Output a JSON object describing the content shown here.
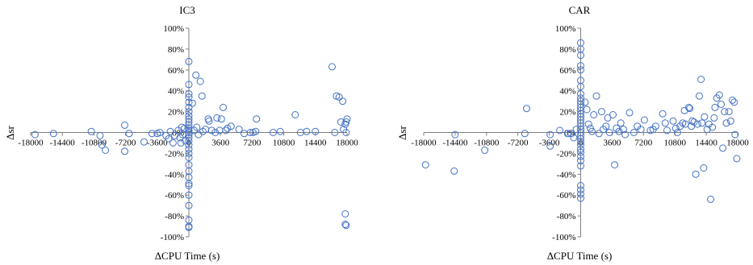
{
  "chart_data": [
    {
      "type": "scatter",
      "title": "IC3",
      "xlabel": "ΔCPU Time (s)",
      "ylabel": "Δsr",
      "xlim": [
        -18000,
        18000
      ],
      "ylim": [
        -100,
        100
      ],
      "x_ticks": [
        "-18000",
        "-14400",
        "-10800",
        "-7200",
        "-3600",
        "0",
        "3600",
        "7200",
        "10800",
        "14400",
        "18000"
      ],
      "y_ticks": [
        "-100%",
        "-80%",
        "-60%",
        "-40%",
        "-20%",
        "0%",
        "20%",
        "40%",
        "60%",
        "80%",
        "100%"
      ],
      "grid": false,
      "marker_color": "#4472c4",
      "series": [
        {
          "points": [
            [
              -17500,
              -2
            ],
            [
              -15400,
              -1
            ],
            [
              -11100,
              1
            ],
            [
              -10100,
              -3
            ],
            [
              -9900,
              -12
            ],
            [
              -9500,
              -17
            ],
            [
              -7300,
              7
            ],
            [
              -7300,
              -18
            ],
            [
              -6800,
              -1
            ],
            [
              -5100,
              -9
            ],
            [
              -4200,
              -1
            ],
            [
              -3600,
              -1
            ],
            [
              -3300,
              0
            ],
            [
              -2600,
              -3
            ],
            [
              -2300,
              -6
            ],
            [
              -2100,
              1
            ],
            [
              -1800,
              -10
            ],
            [
              -1600,
              -3
            ],
            [
              -1200,
              2
            ],
            [
              -1000,
              -5
            ],
            [
              -900,
              -10
            ],
            [
              -800,
              5
            ],
            [
              -700,
              -2
            ],
            [
              -500,
              4
            ],
            [
              -400,
              -8
            ],
            [
              0,
              68
            ],
            [
              0,
              46
            ],
            [
              0,
              37
            ],
            [
              0,
              34
            ],
            [
              0,
              29
            ],
            [
              0,
              24
            ],
            [
              0,
              20
            ],
            [
              0,
              16
            ],
            [
              0,
              13
            ],
            [
              0,
              10
            ],
            [
              0,
              7
            ],
            [
              0,
              4
            ],
            [
              0,
              2
            ],
            [
              0,
              0
            ],
            [
              0,
              -2
            ],
            [
              0,
              -5
            ],
            [
              0,
              -8
            ],
            [
              0,
              -12
            ],
            [
              0,
              -16
            ],
            [
              0,
              -20
            ],
            [
              0,
              -24
            ],
            [
              0,
              -31
            ],
            [
              0,
              -37
            ],
            [
              0,
              -43
            ],
            [
              0,
              -49
            ],
            [
              0,
              -51
            ],
            [
              0,
              -60
            ],
            [
              0,
              -70
            ],
            [
              0,
              -84
            ],
            [
              0,
              -90
            ],
            [
              0,
              -91
            ],
            [
              400,
              28
            ],
            [
              600,
              2
            ],
            [
              800,
              55
            ],
            [
              900,
              5
            ],
            [
              1100,
              -2
            ],
            [
              1300,
              49
            ],
            [
              1500,
              35
            ],
            [
              1600,
              1
            ],
            [
              1900,
              3
            ],
            [
              2200,
              13
            ],
            [
              2300,
              11
            ],
            [
              2600,
              2
            ],
            [
              3000,
              0
            ],
            [
              3200,
              14
            ],
            [
              3500,
              2
            ],
            [
              3700,
              13
            ],
            [
              3900,
              24
            ],
            [
              4200,
              2
            ],
            [
              4400,
              4
            ],
            [
              4800,
              6
            ],
            [
              5700,
              3
            ],
            [
              6300,
              -1
            ],
            [
              7000,
              0
            ],
            [
              7300,
              0
            ],
            [
              7600,
              1
            ],
            [
              7700,
              13
            ],
            [
              9600,
              0
            ],
            [
              10400,
              1
            ],
            [
              12100,
              17
            ],
            [
              12700,
              0
            ],
            [
              13400,
              1
            ],
            [
              14400,
              1
            ],
            [
              16300,
              63
            ],
            [
              16800,
              35
            ],
            [
              17100,
              34
            ],
            [
              17500,
              30
            ],
            [
              17800,
              -78
            ],
            [
              17800,
              -88
            ],
            [
              17900,
              -89
            ],
            [
              18000,
              13
            ],
            [
              17900,
              10
            ],
            [
              17800,
              8
            ],
            [
              17600,
              3
            ],
            [
              17900,
              0
            ],
            [
              17300,
              10
            ],
            [
              16600,
              0
            ]
          ]
        }
      ]
    },
    {
      "type": "scatter",
      "title": "CAR",
      "xlabel": "ΔCPU Time (s)",
      "ylabel": "Δsr",
      "xlim": [
        -18000,
        18000
      ],
      "ylim": [
        -100,
        100
      ],
      "x_ticks": [
        "-18000",
        "-14400",
        "-10800",
        "-7200",
        "-3600",
        "0",
        "3600",
        "7200",
        "10800",
        "14400",
        "18000"
      ],
      "y_ticks": [
        "-100%",
        "-80%",
        "-60%",
        "-40%",
        "-20%",
        "0%",
        "20%",
        "40%",
        "60%",
        "80%",
        "100%"
      ],
      "grid": false,
      "marker_color": "#4472c4",
      "series": [
        {
          "points": [
            [
              -17800,
              -31
            ],
            [
              -14500,
              -37
            ],
            [
              -14400,
              -2
            ],
            [
              -11000,
              -17
            ],
            [
              -6400,
              -1
            ],
            [
              -6200,
              23
            ],
            [
              -3500,
              -13
            ],
            [
              -3500,
              -2
            ],
            [
              -2400,
              2
            ],
            [
              -1500,
              -1
            ],
            [
              -1100,
              -1
            ],
            [
              -800,
              -5
            ],
            [
              -500,
              3
            ],
            [
              0,
              86
            ],
            [
              0,
              80
            ],
            [
              0,
              74
            ],
            [
              0,
              64
            ],
            [
              0,
              60
            ],
            [
              0,
              50
            ],
            [
              0,
              44
            ],
            [
              0,
              37
            ],
            [
              0,
              33
            ],
            [
              0,
              30
            ],
            [
              0,
              27
            ],
            [
              0,
              24
            ],
            [
              0,
              21
            ],
            [
              0,
              18
            ],
            [
              0,
              15
            ],
            [
              0,
              12
            ],
            [
              0,
              9
            ],
            [
              0,
              6
            ],
            [
              0,
              3
            ],
            [
              0,
              0
            ],
            [
              0,
              -3
            ],
            [
              0,
              -6
            ],
            [
              0,
              -9
            ],
            [
              0,
              -12
            ],
            [
              0,
              -16
            ],
            [
              0,
              -19
            ],
            [
              0,
              -23
            ],
            [
              0,
              -27
            ],
            [
              0,
              -32
            ],
            [
              0,
              -51
            ],
            [
              0,
              -55
            ],
            [
              0,
              -59
            ],
            [
              0,
              -63
            ],
            [
              500,
              29
            ],
            [
              700,
              22
            ],
            [
              900,
              8
            ],
            [
              1100,
              4
            ],
            [
              1300,
              1
            ],
            [
              1500,
              17
            ],
            [
              1800,
              35
            ],
            [
              2100,
              -1
            ],
            [
              2400,
              20
            ],
            [
              2600,
              3
            ],
            [
              2900,
              6
            ],
            [
              3100,
              14
            ],
            [
              3300,
              0
            ],
            [
              3700,
              17
            ],
            [
              3900,
              -31
            ],
            [
              4100,
              4
            ],
            [
              4400,
              1
            ],
            [
              4600,
              9
            ],
            [
              4900,
              3
            ],
            [
              5100,
              -2
            ],
            [
              5600,
              19
            ],
            [
              6100,
              0
            ],
            [
              6500,
              6
            ],
            [
              6900,
              3
            ],
            [
              7300,
              12
            ],
            [
              8000,
              2
            ],
            [
              8300,
              3
            ],
            [
              8600,
              6
            ],
            [
              9400,
              18
            ],
            [
              9700,
              9
            ],
            [
              9900,
              2
            ],
            [
              10600,
              11
            ],
            [
              10900,
              4
            ],
            [
              11100,
              0
            ],
            [
              11400,
              6
            ],
            [
              11700,
              9
            ],
            [
              11900,
              21
            ],
            [
              12000,
              8
            ],
            [
              12400,
              24
            ],
            [
              12500,
              23
            ],
            [
              12700,
              6
            ],
            [
              12800,
              11
            ],
            [
              13000,
              10
            ],
            [
              13200,
              -40
            ],
            [
              13400,
              8
            ],
            [
              13600,
              35
            ],
            [
              13800,
              51
            ],
            [
              13900,
              9
            ],
            [
              14100,
              -34
            ],
            [
              14200,
              15
            ],
            [
              14500,
              3
            ],
            [
              14700,
              8
            ],
            [
              14900,
              -64
            ],
            [
              15100,
              5
            ],
            [
              15300,
              14
            ],
            [
              15400,
              24
            ],
            [
              15600,
              33
            ],
            [
              15900,
              36
            ],
            [
              16100,
              27
            ],
            [
              16300,
              -15
            ],
            [
              16500,
              20
            ],
            [
              16700,
              9
            ],
            [
              17000,
              20
            ],
            [
              17200,
              11
            ],
            [
              17400,
              31
            ],
            [
              17600,
              29
            ],
            [
              17700,
              -2
            ],
            [
              17900,
              -25
            ]
          ]
        }
      ]
    }
  ]
}
